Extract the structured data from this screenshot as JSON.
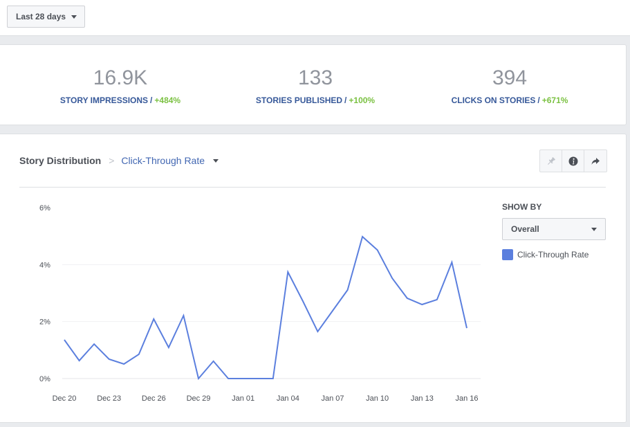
{
  "toolbar": {
    "date_range_label": "Last 28 days"
  },
  "kpis": [
    {
      "value": "16.9K",
      "label": "STORY IMPRESSIONS",
      "separator": "/",
      "change": "+484%"
    },
    {
      "value": "133",
      "label": "STORIES PUBLISHED",
      "separator": "/",
      "change": "+100%"
    },
    {
      "value": "394",
      "label": "CLICKS ON STORIES",
      "separator": "/",
      "change": "+671%"
    }
  ],
  "panel": {
    "title": "Story Distribution",
    "breadcrumb_separator": ">",
    "metric": "Click-Through Rate",
    "actions": [
      {
        "name": "pin",
        "icon": "pin-icon"
      },
      {
        "name": "info",
        "icon": "info-icon"
      },
      {
        "name": "share",
        "icon": "share-icon"
      }
    ],
    "show_by_label": "SHOW BY",
    "show_by_value": "Overall",
    "legend_label": "Click-Through Rate"
  },
  "colors": {
    "accent": "#4267b2",
    "series": "#5b7fde",
    "positive": "#7bc142",
    "kpi_label": "#365899"
  },
  "chart_data": {
    "type": "line",
    "title": "Click-Through Rate",
    "xlabel": "",
    "ylabel": "",
    "ylim": [
      0,
      6
    ],
    "yticks": [
      0,
      2,
      4,
      6
    ],
    "ytick_labels": [
      "0%",
      "2%",
      "4%",
      "6%"
    ],
    "xtick_labels": [
      "Dec 20",
      "Dec 23",
      "Dec 26",
      "Dec 29",
      "Jan 01",
      "Jan 04",
      "Jan 07",
      "Jan 10",
      "Jan 13",
      "Jan 16"
    ],
    "xtick_every": 3,
    "grid": true,
    "legend": "right",
    "x": [
      "Dec 20",
      "Dec 21",
      "Dec 22",
      "Dec 23",
      "Dec 24",
      "Dec 25",
      "Dec 26",
      "Dec 27",
      "Dec 28",
      "Dec 29",
      "Dec 30",
      "Dec 31",
      "Jan 01",
      "Jan 02",
      "Jan 03",
      "Jan 04",
      "Jan 05",
      "Jan 06",
      "Jan 07",
      "Jan 08",
      "Jan 09",
      "Jan 10",
      "Jan 11",
      "Jan 12",
      "Jan 13",
      "Jan 14",
      "Jan 15",
      "Jan 16"
    ],
    "series": [
      {
        "name": "Click-Through Rate",
        "unit": "%",
        "values": [
          1.36,
          0.63,
          1.21,
          0.68,
          0.51,
          0.85,
          2.09,
          1.09,
          2.21,
          0.0,
          0.61,
          0.0,
          0.0,
          0.0,
          0.0,
          3.74,
          2.72,
          1.65,
          2.38,
          3.11,
          4.98,
          4.51,
          3.52,
          2.82,
          2.6,
          2.77,
          4.08,
          1.77
        ]
      }
    ]
  }
}
